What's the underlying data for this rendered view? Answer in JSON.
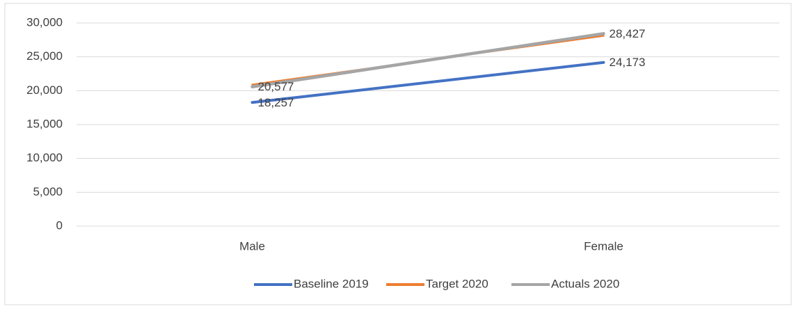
{
  "chart_data": {
    "type": "line",
    "categories": [
      "Male",
      "Female"
    ],
    "series": [
      {
        "name": "Baseline 2019",
        "color": "#4472c4",
        "values": [
          18257,
          24173
        ],
        "value_labels": [
          "18,257",
          "24,173"
        ]
      },
      {
        "name": "Target 2020",
        "color": "#ed7d31",
        "values": [
          20900,
          28100
        ]
      },
      {
        "name": "Actuals 2020",
        "color": "#a5a5a5",
        "values": [
          20577,
          28427
        ],
        "value_labels": [
          "20,577",
          "28,427"
        ]
      }
    ],
    "ylim": [
      0,
      30000
    ],
    "yticks": [
      0,
      {
        "value": 5000,
        "label": "5,000"
      },
      {
        "value": 10000,
        "label": "10,000"
      },
      {
        "value": 15000,
        "label": "15,000"
      },
      {
        "value": 20000,
        "label": "20,000"
      },
      {
        "value": 25000,
        "label": "25,000"
      },
      {
        "value": 30000,
        "label": "30,000"
      }
    ],
    "grid": true,
    "legend": "bottom"
  }
}
